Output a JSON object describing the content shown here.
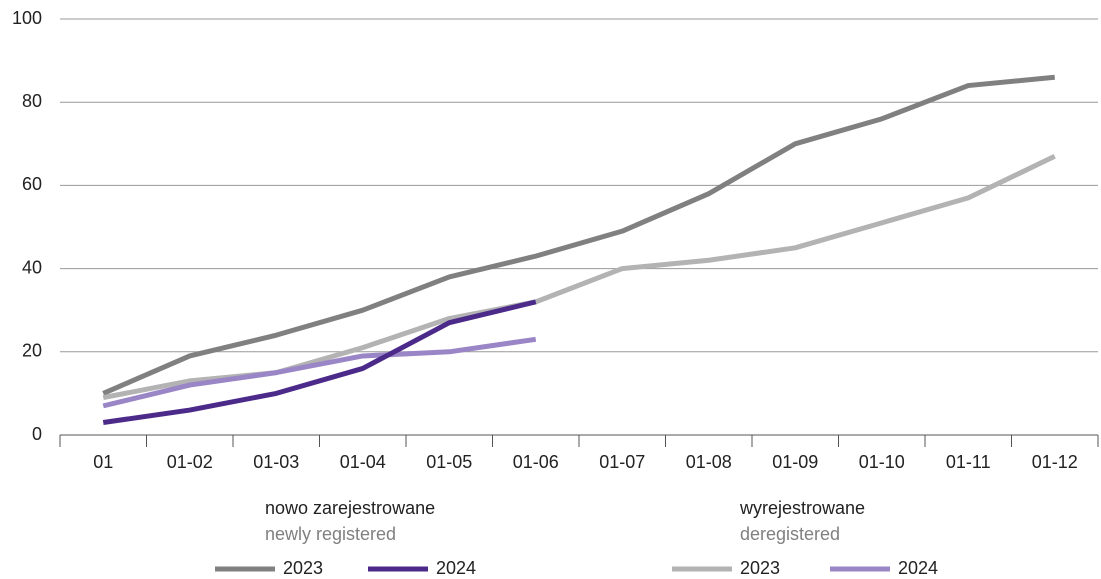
{
  "chart_data": {
    "type": "line",
    "categories": [
      "01",
      "01-02",
      "01-03",
      "01-04",
      "01-05",
      "01-06",
      "01-07",
      "01-08",
      "01-09",
      "01-10",
      "01-11",
      "01-12"
    ],
    "ylim": [
      0,
      100
    ],
    "yticks": [
      0,
      20,
      40,
      60,
      80,
      100
    ],
    "grid": true,
    "groups": [
      {
        "title": "nowo zarejestrowane",
        "subtitle": "newly registered",
        "series": [
          {
            "name": "2023",
            "color": "#808080",
            "values": [
              10,
              19,
              24,
              30,
              38,
              43,
              49,
              58,
              70,
              76,
              84,
              86
            ]
          },
          {
            "name": "2024",
            "color": "#4b2a8a",
            "values": [
              3,
              6,
              10,
              16,
              27,
              32,
              null,
              null,
              null,
              null,
              null,
              null
            ]
          }
        ]
      },
      {
        "title": "wyrejestrowane",
        "subtitle": "deregistered",
        "series": [
          {
            "name": "2023",
            "color": "#b3b3b3",
            "values": [
              9,
              13,
              15,
              21,
              28,
              32,
              40,
              42,
              45,
              51,
              57,
              67
            ]
          },
          {
            "name": "2024",
            "color": "#9a86c6",
            "values": [
              7,
              12,
              15,
              19,
              20,
              23,
              null,
              null,
              null,
              null,
              null,
              null
            ]
          }
        ]
      }
    ]
  }
}
